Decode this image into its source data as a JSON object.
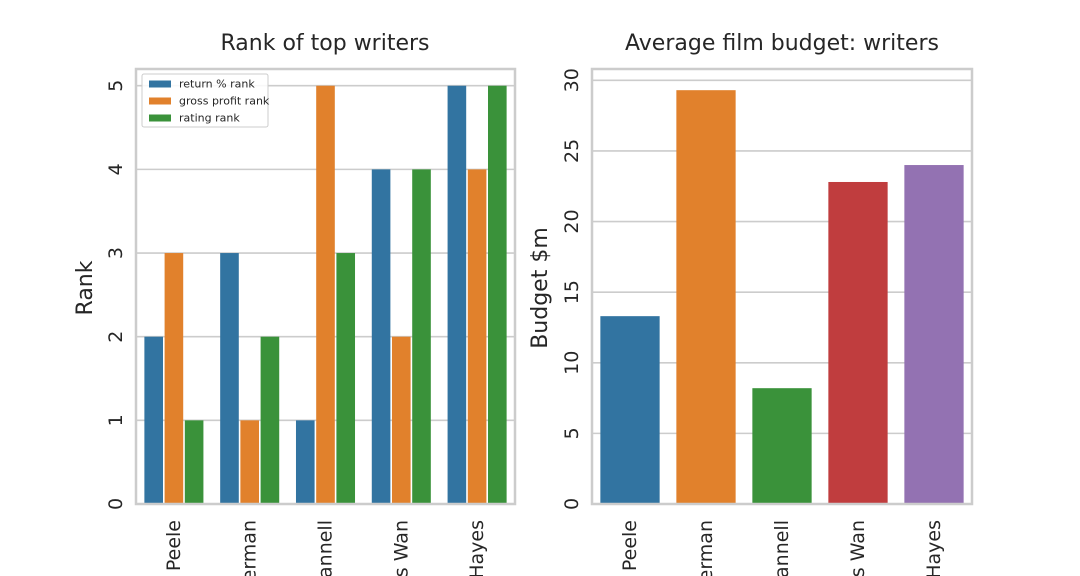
{
  "chart_data": [
    {
      "type": "bar",
      "title": "Rank of top writers",
      "xlabel": "",
      "ylabel": "Rank",
      "ylim": [
        0,
        5.2
      ],
      "yticks": [
        0,
        1,
        2,
        3,
        4,
        5
      ],
      "grid": true,
      "legend": "top-left",
      "categories": [
        "Peele",
        "erman",
        "annell",
        "s Wan",
        "Hayes"
      ],
      "series": [
        {
          "name": "return % rank",
          "color": "#3274a1",
          "values": [
            2,
            3,
            1,
            4,
            5
          ]
        },
        {
          "name": "gross profit rank",
          "color": "#e1812c",
          "values": [
            3,
            1,
            5,
            2,
            4
          ]
        },
        {
          "name": "rating rank",
          "color": "#3a923a",
          "values": [
            1,
            2,
            3,
            4,
            5
          ]
        }
      ]
    },
    {
      "type": "bar",
      "title": "Average film budget: writers",
      "xlabel": "",
      "ylabel": "Budget $m",
      "ylim": [
        0,
        30.8
      ],
      "yticks": [
        0,
        5,
        10,
        15,
        20,
        25,
        30
      ],
      "grid": true,
      "categories": [
        "Peele",
        "erman",
        "annell",
        "s Wan",
        "Hayes"
      ],
      "values": [
        13.3,
        29.3,
        8.2,
        22.8,
        24.0
      ],
      "colors": [
        "#3274a1",
        "#e1812c",
        "#3a923a",
        "#c03d3e",
        "#9372b2"
      ]
    }
  ]
}
